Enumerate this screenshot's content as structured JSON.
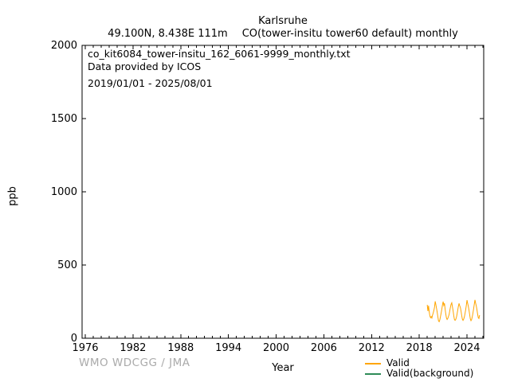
{
  "header": {
    "title": "Karlsruhe",
    "location": "49.100N, 8.438E 111m",
    "dataset": "CO(tower-insitu tower60 default) monthly"
  },
  "plot_annotations": {
    "filename": "co_kit6084_tower-insitu_162_6061-9999_monthly.txt",
    "provider": "Data provided by ICOS",
    "period": "2019/01/01 - 2025/08/01"
  },
  "footer": {
    "watermark": "WMO WDCGG / JMA",
    "xlabel": "Year"
  },
  "chart_data": {
    "type": "line",
    "title": "Karlsruhe",
    "xlabel": "Year",
    "ylabel": "ppb",
    "xlim": [
      1975.6,
      2026.1
    ],
    "ylim": [
      0,
      2000
    ],
    "x_major_ticks": [
      1976,
      1982,
      1988,
      1994,
      2000,
      2006,
      2012,
      2018,
      2024
    ],
    "x_minor_tick_step_years": 1,
    "y_ticks": [
      0,
      500,
      1000,
      1500,
      2000
    ],
    "grid": false,
    "axis_color": "#000000",
    "legend_position": "below-plot-right",
    "series": [
      {
        "name": "Valid",
        "color": "#FFA500",
        "cadence": "monthly",
        "start_year": 2019,
        "start_month": 1,
        "values": [
          228,
          185,
          222,
          180,
          152,
          140,
          148,
          138,
          158,
          172,
          190,
          212,
          252,
          230,
          205,
          178,
          148,
          118,
          113,
          125,
          148,
          172,
          198,
          228,
          250,
          225,
          238,
          198,
          165,
          138,
          128,
          135,
          148,
          162,
          188,
          212,
          232,
          242,
          215,
          188,
          155,
          128,
          122,
          128,
          142,
          165,
          192,
          218,
          238,
          222,
          210,
          185,
          155,
          130,
          122,
          130,
          145,
          168,
          195,
          225,
          260,
          238,
          218,
          192,
          162,
          132,
          120,
          128,
          148,
          172,
          202,
          232,
          262,
          240,
          220,
          195,
          165,
          140,
          135,
          158
        ]
      },
      {
        "name": "Valid(background)",
        "color": "#2E8B57",
        "cadence": "monthly",
        "values": []
      }
    ]
  }
}
